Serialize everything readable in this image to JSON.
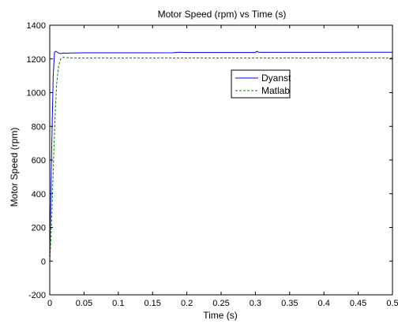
{
  "chart_data": {
    "type": "line",
    "title": "Motor Speed (rpm) vs Time (s)",
    "xlabel": "Time (s)",
    "ylabel": "Motor Speed (rpm)",
    "xlim": [
      0,
      0.5
    ],
    "ylim": [
      -200,
      1400
    ],
    "xticks": [
      0,
      0.05,
      0.1,
      0.15,
      0.2,
      0.25,
      0.3,
      0.35,
      0.4,
      0.45,
      0.5
    ],
    "xtick_labels": [
      "0",
      "0.05",
      "0.1",
      "0.15",
      "0.2",
      "0.25",
      "0.3",
      "0.35",
      "0.4",
      "0.45",
      "0.5"
    ],
    "yticks": [
      -200,
      0,
      200,
      400,
      600,
      800,
      1000,
      1200,
      1400
    ],
    "ytick_labels": [
      "-200",
      "0",
      "200",
      "400",
      "600",
      "800",
      "1000",
      "1200",
      "1400"
    ],
    "grid": false,
    "legend_position": "top-right",
    "series": [
      {
        "name": "Dyanst",
        "color": "#0000ff",
        "style": "solid",
        "x": [
          0,
          0.001,
          0.003,
          0.005,
          0.007,
          0.009,
          0.011,
          0.013,
          0.015,
          0.017,
          0.02,
          0.025,
          0.03,
          0.05,
          0.1,
          0.15,
          0.18,
          0.19,
          0.2,
          0.25,
          0.3,
          0.302,
          0.305,
          0.35,
          0.4,
          0.45,
          0.5
        ],
        "y": [
          0,
          250,
          700,
          1100,
          1240,
          1245,
          1240,
          1235,
          1232,
          1233,
          1235,
          1234,
          1235,
          1236,
          1236,
          1236,
          1237,
          1240,
          1238,
          1238,
          1238,
          1245,
          1239,
          1239,
          1239,
          1240,
          1240
        ]
      },
      {
        "name": "Matlab",
        "color": "#008000",
        "style": "dashed",
        "x": [
          0,
          0.002,
          0.004,
          0.006,
          0.008,
          0.01,
          0.013,
          0.016,
          0.02,
          0.025,
          0.03,
          0.05,
          0.1,
          0.2,
          0.3,
          0.4,
          0.5
        ],
        "y": [
          0,
          150,
          400,
          650,
          880,
          1050,
          1160,
          1200,
          1210,
          1208,
          1205,
          1205,
          1205,
          1205,
          1205,
          1205,
          1205
        ]
      }
    ]
  }
}
